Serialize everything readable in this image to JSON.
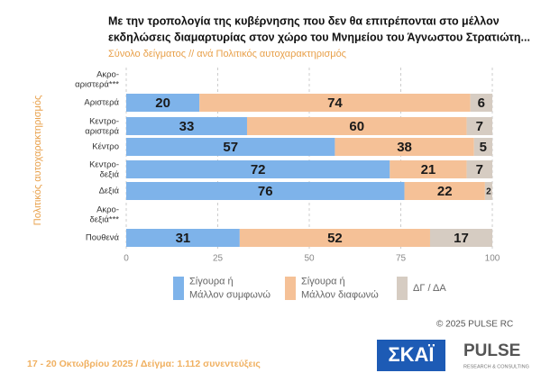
{
  "chart_data": {
    "type": "stacked-bar-horizontal",
    "title": [
      "Με την τροπολογία της κυβέρνησης που δεν θα επιτρέπονται στο μέλλον",
      "εκδηλώσεις διαμαρτυρίας στον χώρο του Μνημείου του Άγνωστου Στρατιώτη..."
    ],
    "subtitle": "Σύνολο δείγματος // ανά Πολιτικός αυτοχαρακτηρισμός",
    "ylabel": "Πολιτικός αυτοχαρακτηρισμός",
    "categories": [
      "Ακρο-\nαριστερά***",
      "Αριστερά",
      "Κεντρο-\nαριστερά",
      "Κέντρο",
      "Κεντρο-\nδεξιά",
      "Δεξιά",
      "Ακρο-\nδεξιά***",
      "Πουθενά"
    ],
    "series": [
      {
        "name": "Σίγουρα ή\nΜάλλον συμφωνώ",
        "color": "#7eb3ea",
        "values": [
          null,
          20,
          33,
          57,
          72,
          76,
          null,
          31
        ]
      },
      {
        "name": "Σίγουρα ή\nΜάλλον διαφωνώ",
        "color": "#f5c197",
        "values": [
          null,
          74,
          60,
          38,
          21,
          22,
          null,
          52
        ]
      },
      {
        "name": "ΔΓ / ΔΑ",
        "color": "#d6ccc2",
        "values": [
          null,
          6,
          7,
          5,
          7,
          2,
          null,
          17
        ]
      }
    ],
    "xlim": [
      0,
      100
    ],
    "xticks": [
      0,
      25,
      50,
      75,
      100
    ],
    "grid": true
  },
  "footer": {
    "date_sample": "17 - 20 Οκτωβρίου 2025  /  Δείγμα:  1.112 συνεντεύξεις",
    "copyright": "© 2025  PULSE RC",
    "logo_skai": "ΣΚΑΪ",
    "logo_pulse": "PULSE",
    "logo_pulse_sub": "RESEARCH & CONSULTING"
  }
}
